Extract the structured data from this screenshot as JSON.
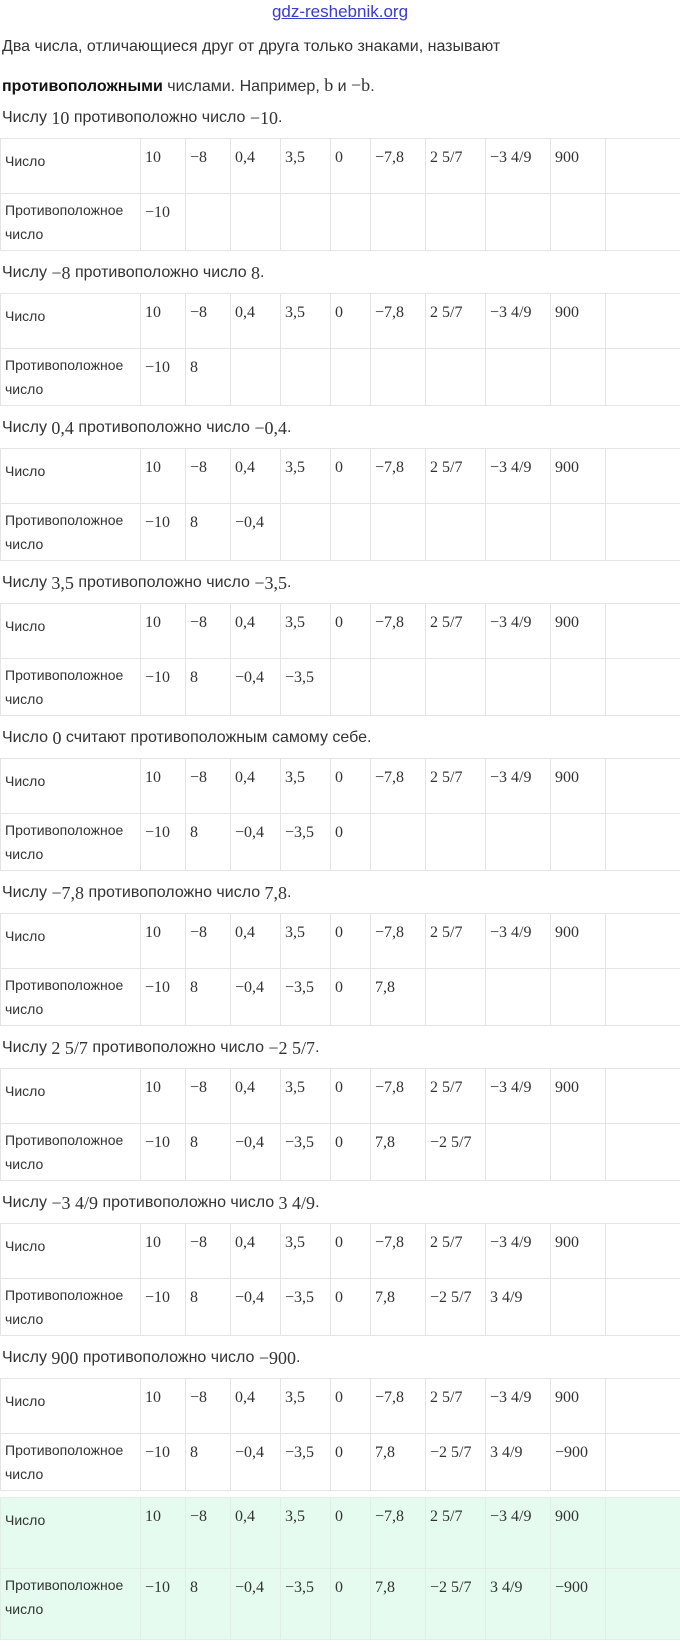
{
  "watermark": "gdz-reshebnik.org",
  "intro": {
    "line1": "Два числа, отличающиеся друг от друга только знаками, называют",
    "bold": "противоположными",
    "rest": " числами. Например, ",
    "b": "b",
    "and": " и ",
    "minus_b": "−b",
    "dot": "."
  },
  "row_labels": {
    "number": "Число",
    "opposite": "Противоположное число"
  },
  "numbers": [
    "10",
    "−8",
    "0,4",
    "3,5",
    "0",
    "−7,8",
    "2 5/7",
    "−3 4/9",
    "900"
  ],
  "opposites": [
    "−10",
    "8",
    "−0,4",
    "−3,5",
    "0",
    "7,8",
    "−2 5/7",
    "3 4/9",
    "−900"
  ],
  "sections": [
    {
      "caption": [
        [
          "Числу ",
          0
        ],
        [
          "10",
          1
        ],
        [
          " противоположно число ",
          0
        ],
        [
          "−10",
          1
        ],
        [
          ".",
          0
        ]
      ],
      "filled": 1
    },
    {
      "caption": [
        [
          "Числу ",
          0
        ],
        [
          "−8",
          1
        ],
        [
          " противоположно число ",
          0
        ],
        [
          "8",
          1
        ],
        [
          ".",
          0
        ]
      ],
      "filled": 2
    },
    {
      "caption": [
        [
          "Числу ",
          0
        ],
        [
          "0,4",
          1
        ],
        [
          " противоположно число ",
          0
        ],
        [
          "−0,4",
          1
        ],
        [
          ".",
          0
        ]
      ],
      "filled": 3
    },
    {
      "caption": [
        [
          "Числу ",
          0
        ],
        [
          "3,5",
          1
        ],
        [
          " противоположно число ",
          0
        ],
        [
          "−3,5",
          1
        ],
        [
          ".",
          0
        ]
      ],
      "filled": 4
    },
    {
      "caption": [
        [
          "Число ",
          0
        ],
        [
          "0",
          1
        ],
        [
          " считают противоположным самому себе.",
          0
        ]
      ],
      "filled": 5
    },
    {
      "caption": [
        [
          "Числу ",
          0
        ],
        [
          "−7,8",
          1
        ],
        [
          " противоположно число ",
          0
        ],
        [
          "7,8",
          1
        ],
        [
          ".",
          0
        ]
      ],
      "filled": 6
    },
    {
      "caption": [
        [
          "Числу ",
          0
        ],
        [
          "2 5/7",
          1
        ],
        [
          " противоположно число ",
          0
        ],
        [
          "−2 5/7",
          1
        ],
        [
          ".",
          0
        ]
      ],
      "filled": 7
    },
    {
      "caption": [
        [
          "Числу ",
          0
        ],
        [
          "−3 4/9",
          1
        ],
        [
          " противоположно число ",
          0
        ],
        [
          "3 4/9",
          1
        ],
        [
          ".",
          0
        ]
      ],
      "filled": 8
    },
    {
      "caption": [
        [
          "Числу ",
          0
        ],
        [
          "900",
          1
        ],
        [
          " противоположно число ",
          0
        ],
        [
          "−900",
          1
        ],
        [
          ".",
          0
        ]
      ],
      "filled": 9
    },
    {
      "caption": [],
      "filled": 9,
      "final": true
    }
  ],
  "colors": {
    "final_bg": "#e6fbef",
    "watermark_top": "#3b3bd0"
  }
}
